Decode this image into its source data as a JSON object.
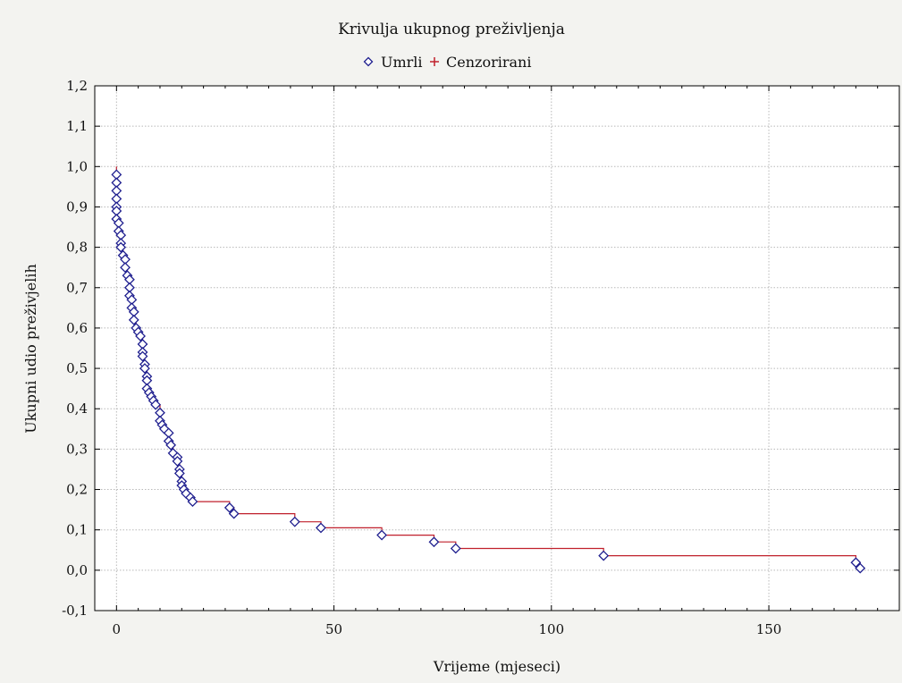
{
  "chart_data": {
    "type": "line",
    "title": "Krivulja ukupnog preživljenja",
    "xlabel": "Vrijeme (mjeseci)",
    "ylabel": "Ukupni udio preživjelih",
    "xlim": [
      -5,
      180
    ],
    "ylim": [
      -0.1,
      1.2
    ],
    "xticks": [
      0,
      50,
      100,
      150
    ],
    "xtick_labels": [
      "0",
      "50",
      "100",
      "150"
    ],
    "yticks": [
      -0.1,
      0.0,
      0.1,
      0.2,
      0.3,
      0.4,
      0.5,
      0.6,
      0.7,
      0.8,
      0.9,
      1.0,
      1.1,
      1.2
    ],
    "ytick_labels": [
      "-0,1",
      "0,0",
      "0,1",
      "0,2",
      "0,3",
      "0,4",
      "0,5",
      "0,6",
      "0,7",
      "0,8",
      "0,9",
      "1,0",
      "1,1",
      "1,2"
    ],
    "grid": true,
    "legend_position": "top-center",
    "colors": {
      "line": "#c0202c",
      "marker": "#1f1f8f",
      "plot_bg": "#ffffff",
      "grid": "#b8b8b8"
    },
    "series": [
      {
        "name": "Umrli",
        "marker": "diamond-open",
        "x": [
          0,
          0,
          0,
          0,
          0,
          0,
          0,
          0.5,
          0.5,
          1,
          1,
          1,
          1.5,
          2,
          2,
          2.5,
          3,
          3,
          3,
          3.5,
          3.5,
          4,
          4,
          4.5,
          5,
          5.5,
          6,
          6,
          6,
          6.5,
          6.5,
          7,
          7,
          7,
          7.5,
          8,
          8.5,
          9,
          10,
          10,
          10.5,
          11,
          12,
          12,
          12.5,
          13,
          14,
          14,
          14.5,
          14.5,
          15,
          15,
          15.5,
          16,
          17,
          17.5,
          26,
          27,
          41,
          47,
          61,
          73,
          78,
          112,
          170,
          171
        ],
        "y": [
          0.98,
          0.96,
          0.94,
          0.92,
          0.9,
          0.89,
          0.87,
          0.86,
          0.84,
          0.83,
          0.81,
          0.8,
          0.78,
          0.77,
          0.75,
          0.73,
          0.72,
          0.7,
          0.68,
          0.67,
          0.65,
          0.64,
          0.62,
          0.6,
          0.59,
          0.58,
          0.56,
          0.54,
          0.53,
          0.51,
          0.5,
          0.48,
          0.47,
          0.45,
          0.44,
          0.43,
          0.42,
          0.41,
          0.39,
          0.37,
          0.36,
          0.35,
          0.34,
          0.32,
          0.31,
          0.29,
          0.28,
          0.27,
          0.25,
          0.24,
          0.22,
          0.21,
          0.2,
          0.19,
          0.18,
          0.17,
          0.155,
          0.14,
          0.12,
          0.105,
          0.087,
          0.07,
          0.054,
          0.036,
          0.019,
          0.005
        ]
      },
      {
        "name": "Cenzorirani",
        "marker": "plus",
        "x": [],
        "y": []
      }
    ]
  }
}
